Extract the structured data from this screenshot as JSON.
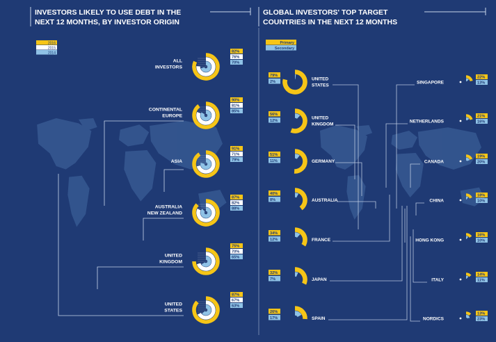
{
  "colors": {
    "background": "#1f3a74",
    "map": "#3a5d96",
    "c2016": "#f6c517",
    "c2015": "#ffffff",
    "c2014": "#8fc2e6",
    "primary": "#f6c517",
    "secondary": "#8fc2e6",
    "line": "#c9d6ea"
  },
  "chart_data": [
    {
      "type": "radial-bar",
      "title": "INVESTORS LIKELY TO USE DEBT IN THE NEXT 12 MONTHS, BY INVESTOR ORIGIN",
      "title_lines": [
        "INVESTORS LIKELY TO USE DEBT IN THE",
        "NEXT 12 MONTHS, BY INVESTOR ORIGIN"
      ],
      "legend": [
        "2016",
        "2015",
        "2014"
      ],
      "categories": [
        {
          "name": "ALL INVESTORS",
          "lines": [
            "ALL",
            "INVESTORS"
          ],
          "values": [
            82,
            76,
            70
          ],
          "labels": [
            "82%",
            "76%",
            "70%"
          ]
        },
        {
          "name": "CONTINENTAL EUROPE",
          "lines": [
            "CONTINENTAL",
            "EUROPE"
          ],
          "values": [
            90,
            81,
            85
          ],
          "labels": [
            "90%",
            "81%",
            "85%"
          ]
        },
        {
          "name": "ASIA",
          "lines": [
            "ASIA"
          ],
          "values": [
            91,
            71,
            79
          ],
          "labels": [
            "91%",
            "71%",
            "79%"
          ]
        },
        {
          "name": "AUSTRALIA NEW ZEALAND",
          "lines": [
            "AUSTRALIA",
            "NEW ZEALAND"
          ],
          "values": [
            87,
            82,
            88
          ],
          "labels": [
            "87%",
            "82%",
            "88%"
          ]
        },
        {
          "name": "UNITED KINGDOM",
          "lines": [
            "UNITED",
            "KINGDOM"
          ],
          "values": [
            75,
            70,
            65
          ],
          "labels": [
            "75%",
            "70%",
            "65%"
          ]
        },
        {
          "name": "UNITED STATES",
          "lines": [
            "UNITED",
            "STATES"
          ],
          "values": [
            87,
            67,
            63
          ],
          "labels": [
            "87%",
            "67%",
            "63%"
          ]
        }
      ]
    },
    {
      "type": "radial-bar",
      "title": "GLOBAL INVESTORS' TOP TARGET COUNTRIES IN THE NEXT 12 MONTHS",
      "title_lines": [
        "GLOBAL INVESTORS' TOP TARGET",
        "COUNTRIES IN THE NEXT 12 MONTHS"
      ],
      "legend": [
        "Primary",
        "Secondary"
      ],
      "left": [
        {
          "name": "UNITED STATES",
          "lines": [
            "UNITED",
            "STATES"
          ],
          "values": [
            79,
            2
          ],
          "labels": [
            "79%",
            "2%"
          ]
        },
        {
          "name": "UNITED KINGDOM",
          "lines": [
            "UNITED",
            "KINGDOM"
          ],
          "values": [
            56,
            12
          ],
          "labels": [
            "56%",
            "12%"
          ]
        },
        {
          "name": "GERMANY",
          "lines": [
            "GERMANY"
          ],
          "values": [
            51,
            11
          ],
          "labels": [
            "51%",
            "11%"
          ]
        },
        {
          "name": "AUSTRALIA",
          "lines": [
            "AUSTRALIA"
          ],
          "values": [
            40,
            8
          ],
          "labels": [
            "40%",
            "8%"
          ]
        },
        {
          "name": "FRANCE",
          "lines": [
            "FRANCE"
          ],
          "values": [
            34,
            12
          ],
          "labels": [
            "34%",
            "12%"
          ]
        },
        {
          "name": "JAPAN",
          "lines": [
            "JAPAN"
          ],
          "values": [
            32,
            7
          ],
          "labels": [
            "32%",
            "7%"
          ]
        },
        {
          "name": "SPAIN",
          "lines": [
            "SPAIN"
          ],
          "values": [
            26,
            17
          ],
          "labels": [
            "26%",
            "17%"
          ]
        }
      ],
      "right": [
        {
          "name": "SINGAPORE",
          "lines": [
            "SINGAPORE"
          ],
          "values": [
            22,
            13
          ],
          "labels": [
            "22%",
            "13%"
          ]
        },
        {
          "name": "NETHERLANDS",
          "lines": [
            "NETHERLANDS"
          ],
          "values": [
            21,
            16
          ],
          "labels": [
            "21%",
            "16%"
          ]
        },
        {
          "name": "CANADA",
          "lines": [
            "CANADA"
          ],
          "values": [
            19,
            20
          ],
          "labels": [
            "19%",
            "20%"
          ]
        },
        {
          "name": "CHINA",
          "lines": [
            "CHINA"
          ],
          "values": [
            18,
            10
          ],
          "labels": [
            "18%",
            "10%"
          ]
        },
        {
          "name": "HONG KONG",
          "lines": [
            "HONG KONG"
          ],
          "values": [
            16,
            10
          ],
          "labels": [
            "16%",
            "10%"
          ]
        },
        {
          "name": "ITALY",
          "lines": [
            "ITALY"
          ],
          "values": [
            14,
            11
          ],
          "labels": [
            "14%",
            "11%"
          ]
        },
        {
          "name": "NORDICS",
          "lines": [
            "NORDICS"
          ],
          "values": [
            13,
            23
          ],
          "labels": [
            "13%",
            "23%"
          ]
        }
      ]
    }
  ]
}
